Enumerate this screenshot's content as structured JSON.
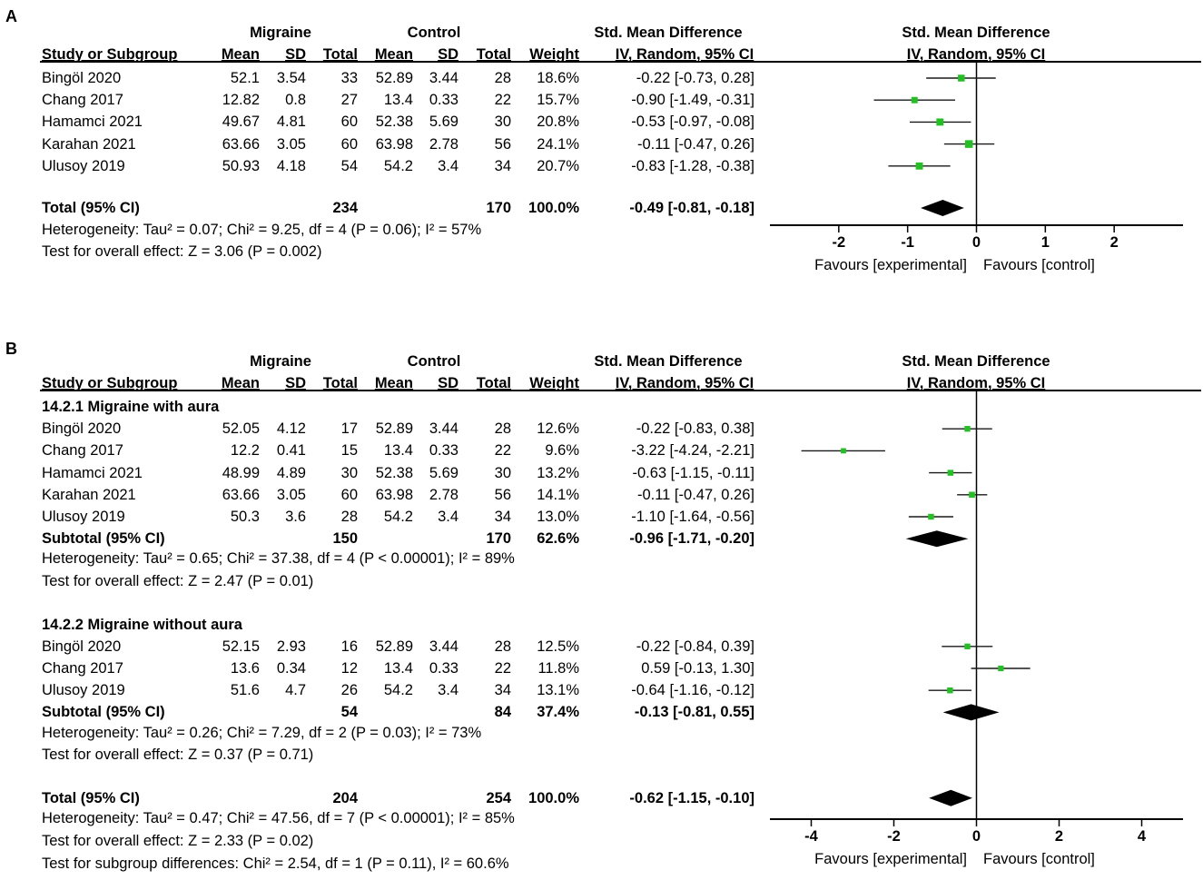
{
  "panels": [
    {
      "label": "A",
      "headers": {
        "group1": "Migraine",
        "group2": "Control",
        "smd": "Std. Mean Difference",
        "study": "Study or Subgroup",
        "mean1": "Mean",
        "sd1": "SD",
        "total1": "Total",
        "mean2": "Mean",
        "sd2": "SD",
        "total2": "Total",
        "weight": "Weight",
        "ci": "IV, Random, 95% CI",
        "plot_title": "Std. Mean Difference",
        "plot_subtitle": "IV, Random, 95% CI"
      },
      "rows": [
        {
          "kind": "study",
          "study": "Bingöl 2020",
          "mean1": "52.1",
          "sd1": "3.54",
          "n1": "33",
          "mean2": "52.89",
          "sd2": "3.44",
          "n2": "28",
          "weight": "18.6%",
          "ci": "-0.22 [-0.73, 0.28]",
          "est": -0.22,
          "lo": -0.73,
          "hi": 0.28,
          "w": 18.6
        },
        {
          "kind": "study",
          "study": "Chang 2017",
          "mean1": "12.82",
          "sd1": "0.8",
          "n1": "27",
          "mean2": "13.4",
          "sd2": "0.33",
          "n2": "22",
          "weight": "15.7%",
          "ci": "-0.90 [-1.49, -0.31]",
          "est": -0.9,
          "lo": -1.49,
          "hi": -0.31,
          "w": 15.7
        },
        {
          "kind": "study",
          "study": "Hamamci 2021",
          "mean1": "49.67",
          "sd1": "4.81",
          "n1": "60",
          "mean2": "52.38",
          "sd2": "5.69",
          "n2": "30",
          "weight": "20.8%",
          "ci": "-0.53 [-0.97, -0.08]",
          "est": -0.53,
          "lo": -0.97,
          "hi": -0.08,
          "w": 20.8
        },
        {
          "kind": "study",
          "study": "Karahan 2021",
          "mean1": "63.66",
          "sd1": "3.05",
          "n1": "60",
          "mean2": "63.98",
          "sd2": "2.78",
          "n2": "56",
          "weight": "24.1%",
          "ci": "-0.11 [-0.47, 0.26]",
          "est": -0.11,
          "lo": -0.47,
          "hi": 0.26,
          "w": 24.1
        },
        {
          "kind": "study",
          "study": "Ulusoy 2019",
          "mean1": "50.93",
          "sd1": "4.18",
          "n1": "54",
          "mean2": "54.2",
          "sd2": "3.4",
          "n2": "34",
          "weight": "20.7%",
          "ci": "-0.83 [-1.28, -0.38]",
          "est": -0.83,
          "lo": -1.28,
          "hi": -0.38,
          "w": 20.7
        },
        {
          "kind": "blank"
        },
        {
          "kind": "total",
          "study": "Total (95% CI)",
          "n1": "234",
          "n2": "170",
          "weight": "100.0%",
          "ci": "-0.49 [-0.81, -0.18]",
          "est": -0.49,
          "lo": -0.81,
          "hi": -0.18
        },
        {
          "kind": "note",
          "text": "Heterogeneity: Tau² = 0.07; Chi² = 9.25, df = 4 (P = 0.06); I² = 57%"
        },
        {
          "kind": "note",
          "text": "Test for overall effect: Z = 3.06 (P = 0.002)"
        }
      ],
      "axis": {
        "xlim": [
          -3.0,
          3.0
        ],
        "ticks": [
          -2,
          -1,
          0,
          1,
          2
        ],
        "tick_labels": [
          "-2",
          "-1",
          "0",
          "1",
          "2"
        ],
        "favours_left": "Favours [experimental]",
        "favours_right": "Favours [control]"
      }
    },
    {
      "label": "B",
      "headers": {
        "group1": "Migraine",
        "group2": "Control",
        "smd": "Std. Mean Difference",
        "study": "Study or Subgroup",
        "mean1": "Mean",
        "sd1": "SD",
        "total1": "Total",
        "mean2": "Mean",
        "sd2": "SD",
        "total2": "Total",
        "weight": "Weight",
        "ci": "IV, Random, 95% CI",
        "plot_title": "Std. Mean Difference",
        "plot_subtitle": "IV, Random, 95% CI"
      },
      "rows": [
        {
          "kind": "subgroup",
          "text": "14.2.1 Migraine with aura"
        },
        {
          "kind": "study",
          "study": "Bingöl 2020",
          "mean1": "52.05",
          "sd1": "4.12",
          "n1": "17",
          "mean2": "52.89",
          "sd2": "3.44",
          "n2": "28",
          "weight": "12.6%",
          "ci": "-0.22 [-0.83, 0.38]",
          "est": -0.22,
          "lo": -0.83,
          "hi": 0.38,
          "w": 12.6
        },
        {
          "kind": "study",
          "study": "Chang 2017",
          "mean1": "12.2",
          "sd1": "0.41",
          "n1": "15",
          "mean2": "13.4",
          "sd2": "0.33",
          "n2": "22",
          "weight": "9.6%",
          "ci": "-3.22 [-4.24, -2.21]",
          "est": -3.22,
          "lo": -4.24,
          "hi": -2.21,
          "w": 9.6
        },
        {
          "kind": "study",
          "study": "Hamamci 2021",
          "mean1": "48.99",
          "sd1": "4.89",
          "n1": "30",
          "mean2": "52.38",
          "sd2": "5.69",
          "n2": "30",
          "weight": "13.2%",
          "ci": "-0.63 [-1.15, -0.11]",
          "est": -0.63,
          "lo": -1.15,
          "hi": -0.11,
          "w": 13.2
        },
        {
          "kind": "study",
          "study": "Karahan 2021",
          "mean1": "63.66",
          "sd1": "3.05",
          "n1": "60",
          "mean2": "63.98",
          "sd2": "2.78",
          "n2": "56",
          "weight": "14.1%",
          "ci": "-0.11 [-0.47, 0.26]",
          "est": -0.11,
          "lo": -0.47,
          "hi": 0.26,
          "w": 14.1
        },
        {
          "kind": "study",
          "study": "Ulusoy 2019",
          "mean1": "50.3",
          "sd1": "3.6",
          "n1": "28",
          "mean2": "54.2",
          "sd2": "3.4",
          "n2": "34",
          "weight": "13.0%",
          "ci": "-1.10 [-1.64, -0.56]",
          "est": -1.1,
          "lo": -1.64,
          "hi": -0.56,
          "w": 13.0
        },
        {
          "kind": "total",
          "study": "Subtotal (95% CI)",
          "n1": "150",
          "n2": "170",
          "weight": "62.6%",
          "ci": "-0.96 [-1.71, -0.20]",
          "est": -0.96,
          "lo": -1.71,
          "hi": -0.2
        },
        {
          "kind": "note",
          "text": "Heterogeneity: Tau² = 0.65; Chi² = 37.38, df = 4 (P < 0.00001); I² = 89%"
        },
        {
          "kind": "note",
          "text": "Test for overall effect: Z = 2.47 (P = 0.01)"
        },
        {
          "kind": "blank"
        },
        {
          "kind": "subgroup",
          "text": "14.2.2 Migraine without aura"
        },
        {
          "kind": "study",
          "study": "Bingöl 2020",
          "mean1": "52.15",
          "sd1": "2.93",
          "n1": "16",
          "mean2": "52.89",
          "sd2": "3.44",
          "n2": "28",
          "weight": "12.5%",
          "ci": "-0.22 [-0.84, 0.39]",
          "est": -0.22,
          "lo": -0.84,
          "hi": 0.39,
          "w": 12.5
        },
        {
          "kind": "study",
          "study": "Chang 2017",
          "mean1": "13.6",
          "sd1": "0.34",
          "n1": "12",
          "mean2": "13.4",
          "sd2": "0.33",
          "n2": "22",
          "weight": "11.8%",
          "ci": "0.59 [-0.13, 1.30]",
          "est": 0.59,
          "lo": -0.13,
          "hi": 1.3,
          "w": 11.8
        },
        {
          "kind": "study",
          "study": "Ulusoy 2019",
          "mean1": "51.6",
          "sd1": "4.7",
          "n1": "26",
          "mean2": "54.2",
          "sd2": "3.4",
          "n2": "34",
          "weight": "13.1%",
          "ci": "-0.64 [-1.16, -0.12]",
          "est": -0.64,
          "lo": -1.16,
          "hi": -0.12,
          "w": 13.1
        },
        {
          "kind": "total",
          "study": "Subtotal (95% CI)",
          "n1": "54",
          "n2": "84",
          "weight": "37.4%",
          "ci": "-0.13 [-0.81, 0.55]",
          "est": -0.13,
          "lo": -0.81,
          "hi": 0.55
        },
        {
          "kind": "note",
          "text": "Heterogeneity: Tau² = 0.26; Chi² = 7.29, df = 2 (P = 0.03); I² = 73%"
        },
        {
          "kind": "note",
          "text": "Test for overall effect: Z = 0.37 (P = 0.71)"
        },
        {
          "kind": "blank"
        },
        {
          "kind": "total",
          "study": "Total (95% CI)",
          "n1": "204",
          "n2": "254",
          "weight": "100.0%",
          "ci": "-0.62 [-1.15, -0.10]",
          "est": -0.62,
          "lo": -1.15,
          "hi": -0.1
        },
        {
          "kind": "note",
          "text": "Heterogeneity: Tau² = 0.47; Chi² = 47.56, df = 7 (P < 0.00001); I² = 85%"
        },
        {
          "kind": "note",
          "text": "Test for overall effect: Z = 2.33 (P = 0.02)"
        },
        {
          "kind": "note",
          "text": "Test for subgroup differences: Chi² = 2.54, df = 1 (P = 0.11), I² = 60.6%"
        }
      ],
      "axis": {
        "xlim": [
          -5.0,
          5.0
        ],
        "ticks": [
          -4,
          -2,
          0,
          2,
          4
        ],
        "tick_labels": [
          "-4",
          "-2",
          "0",
          "2",
          "4"
        ],
        "favours_left": "Favours [experimental]",
        "favours_right": "Favours [control]"
      }
    }
  ],
  "colors": {
    "marker": "#22c022",
    "ink": "#000000",
    "line": "#000000",
    "whisker": "#1a1a1a"
  },
  "chart_data": [
    {
      "type": "forest",
      "title": "Std. Mean Difference",
      "subtitle": "IV, Random, 95% CI",
      "xlim": [
        -3.0,
        3.0
      ],
      "xticks": [
        -2,
        -1,
        0,
        1,
        2
      ],
      "xlabel_left": "Favours [experimental]",
      "xlabel_right": "Favours [control]",
      "categories": [
        "Bingöl 2020",
        "Chang 2017",
        "Hamamci 2021",
        "Karahan 2021",
        "Ulusoy 2019",
        "Total (95% CI)"
      ],
      "estimates": [
        -0.22,
        -0.9,
        -0.53,
        -0.11,
        -0.83,
        -0.49
      ],
      "ci_low": [
        -0.73,
        -1.49,
        -0.97,
        -0.47,
        -1.28,
        -0.81
      ],
      "ci_high": [
        0.28,
        -0.31,
        -0.08,
        0.26,
        -0.38,
        -0.18
      ],
      "weights": [
        18.6,
        15.7,
        20.8,
        24.1,
        20.7,
        100.0
      ]
    },
    {
      "type": "forest",
      "title": "Std. Mean Difference",
      "subtitle": "IV, Random, 95% CI",
      "xlim": [
        -5.0,
        5.0
      ],
      "xticks": [
        -4,
        -2,
        0,
        2,
        4
      ],
      "xlabel_left": "Favours [experimental]",
      "xlabel_right": "Favours [control]",
      "series": [
        {
          "name": "14.2.1 Migraine with aura",
          "categories": [
            "Bingöl 2020",
            "Chang 2017",
            "Hamamci 2021",
            "Karahan 2021",
            "Ulusoy 2019",
            "Subtotal (95% CI)"
          ],
          "estimates": [
            -0.22,
            -3.22,
            -0.63,
            -0.11,
            -1.1,
            -0.96
          ],
          "ci_low": [
            -0.83,
            -4.24,
            -1.15,
            -0.47,
            -1.64,
            -1.71
          ],
          "ci_high": [
            0.38,
            -2.21,
            -0.11,
            0.26,
            -0.56,
            -0.2
          ]
        },
        {
          "name": "14.2.2 Migraine without aura",
          "categories": [
            "Bingöl 2020",
            "Chang 2017",
            "Ulusoy 2019",
            "Subtotal (95% CI)"
          ],
          "estimates": [
            -0.22,
            0.59,
            -0.64,
            -0.13
          ],
          "ci_low": [
            -0.84,
            -0.13,
            -1.16,
            -0.81
          ],
          "ci_high": [
            0.39,
            1.3,
            -0.12,
            0.55
          ]
        },
        {
          "name": "Total (95% CI)",
          "categories": [
            "Total (95% CI)"
          ],
          "estimates": [
            -0.62
          ],
          "ci_low": [
            -1.15
          ],
          "ci_high": [
            -0.1
          ]
        }
      ]
    }
  ]
}
